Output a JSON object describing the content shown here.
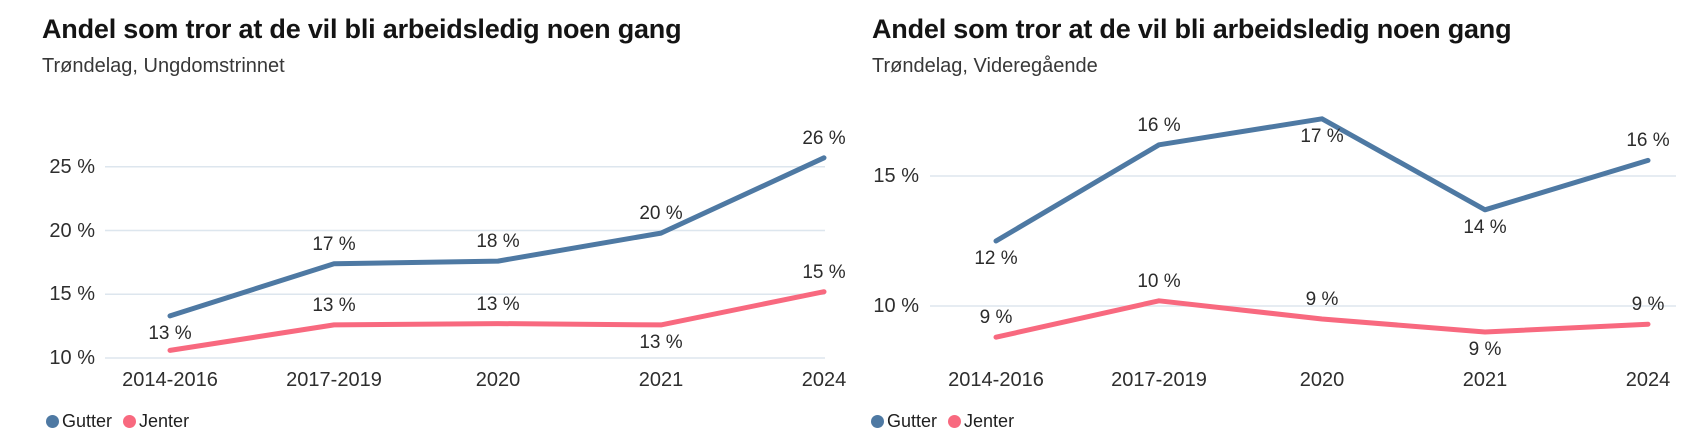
{
  "colors": {
    "gutter_blue": "#4e79a3",
    "jenter_pink": "#f8697f",
    "gridline": "#dde6ee"
  },
  "charts": [
    {
      "title": "Andel som tror at de vil bli arbeidsledig noen gang",
      "subtitle": "Trøndelag, Ungdomstrinnet",
      "chart_data": {
        "type": "line",
        "categories": [
          "2014-2016",
          "2017-2019",
          "2020",
          "2021",
          "2024"
        ],
        "series": [
          {
            "name": "Gutter",
            "color": "#4e79a3",
            "values": [
              13,
              17,
              18,
              20,
              26
            ],
            "plot_values": [
              13.3,
              17.4,
              17.6,
              19.8,
              25.7
            ],
            "labels": [
              "13 %",
              "17 %",
              "18 %",
              "20 %",
              "26 %"
            ],
            "label_side": [
              "below",
              "above",
              "above",
              "above",
              "above"
            ]
          },
          {
            "name": "Jenter",
            "color": "#f8697f",
            "values": [
              11,
              13,
              13,
              13,
              15
            ],
            "plot_values": [
              10.6,
              12.6,
              12.7,
              12.6,
              15.2
            ],
            "labels": [
              null,
              "13 %",
              "13 %",
              "13 %",
              "15 %"
            ],
            "label_side": [
              null,
              "above",
              "above",
              "below",
              "above"
            ]
          }
        ],
        "yticks": [
          10,
          15,
          20,
          25
        ],
        "ytick_labels": [
          "10 %",
          "15 %",
          "20 %",
          "25 %"
        ],
        "ylim": [
          9,
          27.5
        ],
        "grid": "horizontal",
        "legend_position": "bottom-left"
      }
    },
    {
      "title": "Andel som tror at de vil bli arbeidsledig noen gang",
      "subtitle": "Trøndelag, Videregående",
      "chart_data": {
        "type": "line",
        "categories": [
          "2014-2016",
          "2017-2019",
          "2020",
          "2021",
          "2024"
        ],
        "series": [
          {
            "name": "Gutter",
            "color": "#4e79a3",
            "values": [
              12,
              16,
              17,
              14,
              16
            ],
            "plot_values": [
              12.5,
              16.2,
              17.2,
              13.7,
              15.6
            ],
            "labels": [
              "12 %",
              "16 %",
              "17 %",
              "14 %",
              "16 %"
            ],
            "label_side": [
              "below",
              "above",
              "below",
              "below",
              "above"
            ]
          },
          {
            "name": "Jenter",
            "color": "#f8697f",
            "values": [
              9,
              10,
              9,
              9,
              9
            ],
            "plot_values": [
              8.8,
              10.2,
              9.5,
              9.0,
              9.3
            ],
            "labels": [
              "9 %",
              "10 %",
              "9 %",
              "9 %",
              "9 %"
            ],
            "label_side": [
              "above",
              "above",
              "above",
              "below",
              "above"
            ]
          }
        ],
        "yticks": [
          10,
          15
        ],
        "ytick_labels": [
          "10 %",
          "15 %"
        ],
        "ylim": [
          8,
          18
        ],
        "grid": "horizontal",
        "legend_position": "bottom-left"
      }
    }
  ]
}
